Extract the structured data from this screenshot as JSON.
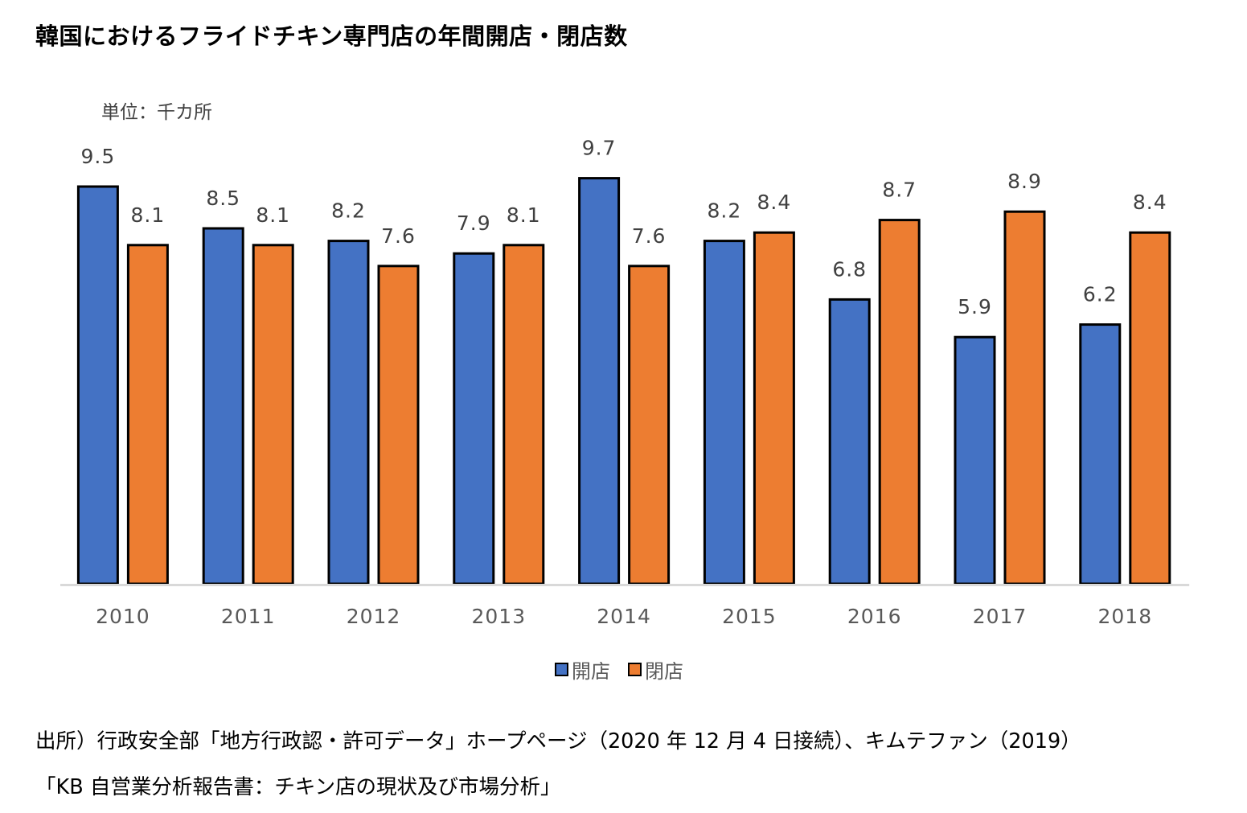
{
  "title": "韓国におけるフライドチキン専門店の年間開店・閉店数",
  "unit_label": "単位：千カ所",
  "chart_data": {
    "type": "bar",
    "title": "韓国におけるフライドチキン専門店の年間開店・閉店数",
    "categories": [
      "2010",
      "2011",
      "2012",
      "2013",
      "2014",
      "2015",
      "2016",
      "2017",
      "2018"
    ],
    "series": [
      {
        "name": "開店",
        "color": "#4472C4",
        "values": [
          9.5,
          8.5,
          8.2,
          7.9,
          9.7,
          8.2,
          6.8,
          5.9,
          6.2
        ]
      },
      {
        "name": "閉店",
        "color": "#ED7D31",
        "values": [
          8.1,
          8.1,
          7.6,
          8.1,
          7.6,
          8.4,
          8.7,
          8.9,
          8.4
        ]
      }
    ],
    "xlabel": "",
    "ylabel": "単位：千カ所",
    "ylim": [
      0,
      10
    ],
    "grid": false,
    "legend": "bottom"
  },
  "legend": {
    "open_label": "開店",
    "close_label": "閉店"
  },
  "source": {
    "line1": "出所）行政安全部「地方行政認・許可データ」ホープページ（2020 年 12 月 4 日接続）、キムテファン（2019）",
    "line2": "「KB 自営業分析報告書：チキン店の現状及び市場分析」"
  }
}
